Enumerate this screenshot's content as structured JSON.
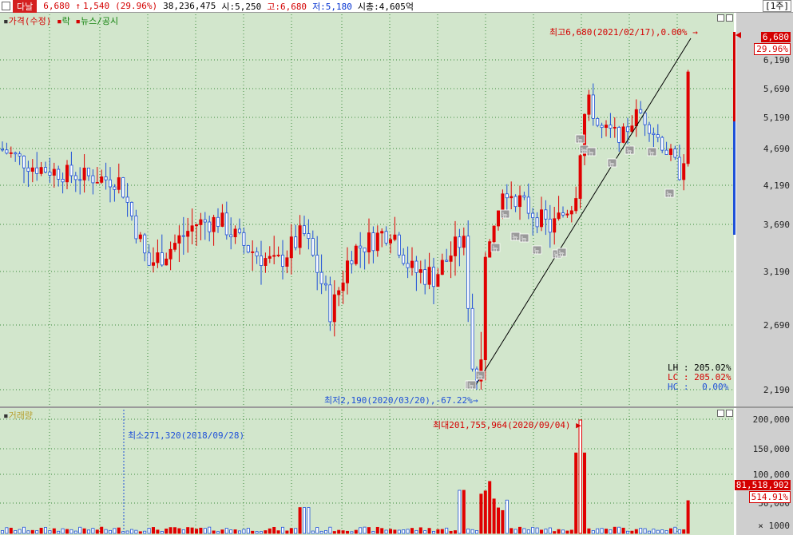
{
  "header": {
    "stock_name": "다날",
    "price": "6,680",
    "arrow": "↑",
    "change": "1,540",
    "change_pct": "(29.96%)",
    "volume": "38,236,475",
    "open": "시:5,250",
    "high": "고:6,680",
    "low": "저:5,180",
    "market_cap": "시총:4,605억",
    "unit_button": "[1주]"
  },
  "price_pane": {
    "legend_price": "가격(수정)",
    "legend_rak": "락",
    "legend_news": "뉴스/공시",
    "max_annotation": "최고6,680(2021/02/17),0.00%",
    "min_annotation": "최저2,190(2020/03/20),-67.22%",
    "stats": [
      {
        "label": "LH",
        "value": "205.02%"
      },
      {
        "label": "LC",
        "value": "205.02%"
      },
      {
        "label": "HC",
        "value": "0.00%"
      }
    ],
    "current_price_badge": "6,680",
    "current_pct_badge": "29.96%",
    "y_ticks": [
      "6,190",
      "5,690",
      "5,190",
      "4,690",
      "4,190",
      "3,690",
      "3,190",
      "2,690",
      "2,190"
    ],
    "news_marker": "뉴"
  },
  "volume_pane": {
    "legend": "거래량",
    "min_annotation": "최소271,320(2018/09/28)",
    "max_annotation": "최대201,755,964(2020/09/04)",
    "current_volume_badge": "81,518,902",
    "current_pct_badge": "514.91%",
    "y_ticks": [
      "200,000",
      "150,000",
      "100,000",
      "50,000"
    ],
    "unit_label": "× 1000"
  },
  "colors": {
    "pane_bg": "#d2e6cc",
    "up": "#e00000",
    "down": "#1e50d8",
    "grid": "#3a8a3a",
    "stock_tag": "#d42020"
  },
  "chart_data": {
    "type": "candlestick",
    "price_range": [
      2190,
      6680
    ],
    "volume_range_thousands": [
      0,
      200000
    ],
    "max": {
      "price": 6680,
      "date": "2021/02/17"
    },
    "min": {
      "price": 2190,
      "date": "2020/03/20"
    },
    "volume_max": {
      "value": 201755964,
      "date": "2020/09/04"
    },
    "volume_min": {
      "value": 271320,
      "date": "2018/09/28"
    }
  }
}
